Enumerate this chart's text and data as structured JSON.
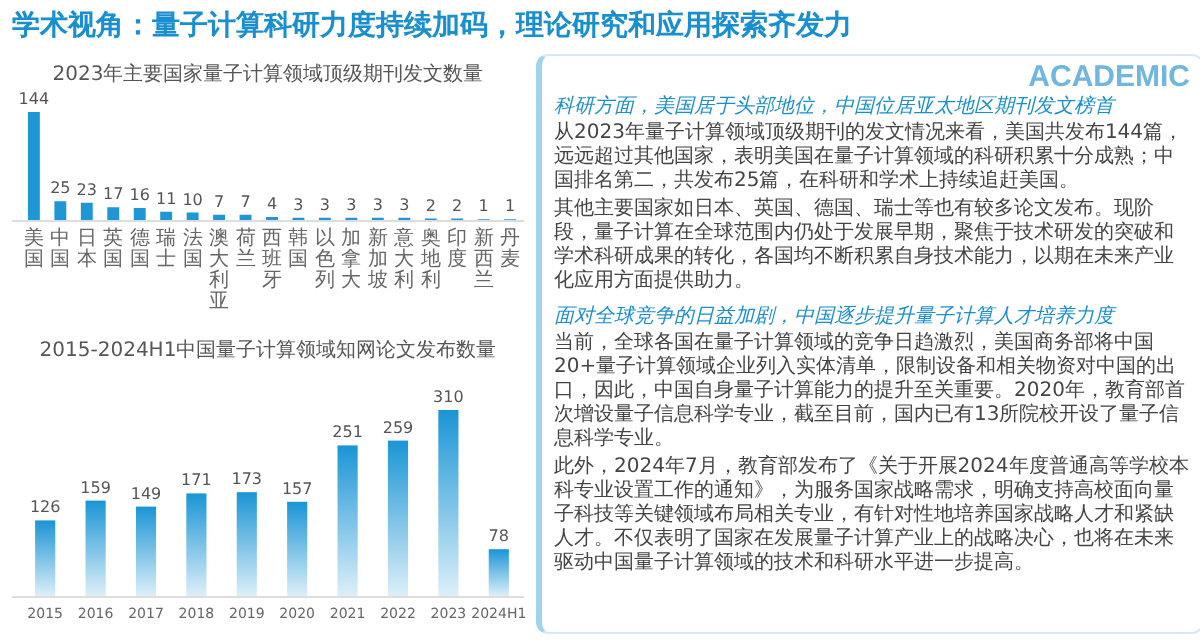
{
  "chart_data": [
    {
      "type": "bar",
      "title": "学术视角：量子计算科研力度持续加码，理论研究和应用探索齐发力",
      "subtitle": "2023年主要国家量子计算领域顶级期刊发文数量",
      "categories": [
        "美国",
        "中国",
        "日本",
        "英国",
        "德国",
        "瑞士",
        "法国",
        "澳大利亚",
        "荷兰",
        "西班牙",
        "韩国",
        "以色列",
        "加拿大",
        "新加坡",
        "意大利",
        "奥地利",
        "印度",
        "新西兰",
        "丹麦"
      ],
      "values": [
        144,
        25,
        23,
        17,
        16,
        11,
        10,
        7,
        7,
        4,
        3,
        3,
        3,
        3,
        3,
        2,
        2,
        1,
        1
      ],
      "color": "#1f97d4",
      "data_labels": true
    },
    {
      "type": "bar",
      "subtitle": "2015-2024H1中国量子计算领域知网论文发布数量",
      "categories": [
        "2015",
        "2016",
        "2017",
        "2018",
        "2019",
        "2020",
        "2021",
        "2022",
        "2023",
        "2024H1"
      ],
      "values": [
        126,
        159,
        149,
        171,
        173,
        157,
        251,
        259,
        310,
        78
      ],
      "color": "#1a95d5",
      "data_labels": true
    },
    {
      "type": "other",
      "subtitle": "ACADEMIC",
      "title": "科研方面，美国居于头部地位，中国位居亚太地区期刊发文榜首",
      "annotations": [
        "从2023年量子计算领域顶级期刊的发文情况来看，美国共发布144篇，远远超过其他国家，表明美国在量子计算领域的科研积累十分成熟；中国排名第二，共发布25篇，在科研和学术上持续追赶美国。",
        "其他主要国家如日本、英国、德国、瑞士等也有较多论文发布。现阶段，量子计算在全球范围内仍处于发展早期，聚焦于技术研发的突破和学术科研成果的转化，各国均不断积累自身技术能力，以期在未来产业化应用方面提供助力。"
      ]
    },
    {
      "type": "other",
      "title": "面对全球竞争的日益加剧，中国逐步提升量子计算人才培养力度",
      "annotations": [
        "当前，全球各国在量子计算领域的竞争日趋激烈，美国商务部将中国20+量子计算领域企业列入实体清单，限制设备和相关物资对中国的出口，因此，中国自身量子计算能力的提升至关重要。2020年，教育部首次增设量子信息科学专业，截至目前，国内已有13所院校开设了量子信息科学专业。",
        "此外，2024年7月，教育部发布了《关于开展2024年度普通高等学校本科专业设置工作的通知》，为服务国家战略需求，明确支持高校面向量子科技等关键领域布局相关专业，有针对性地培养国家战略人才和紧缺人才。不仅表明了国家在发展量子计算产业上的战略决心，也将在未来驱动中国量子计算领域的技术和科研水平进一步提高。"
      ]
    }
  ]
}
